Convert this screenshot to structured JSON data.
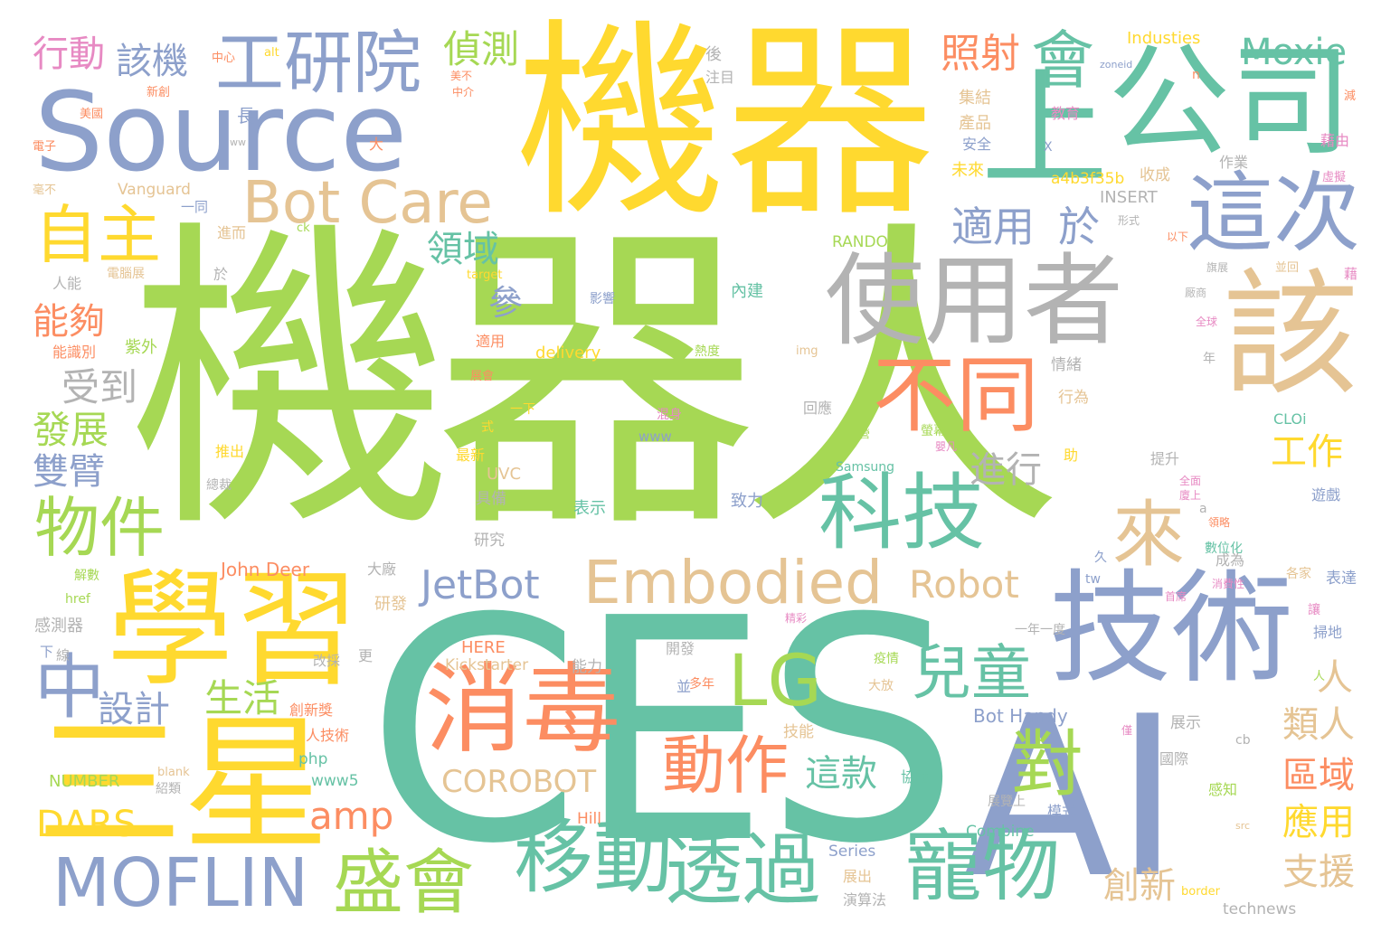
{
  "palette": {
    "green": "#a6d854",
    "teal": "#66c2a5",
    "blue": "#8da0cb",
    "yellow": "#ffd92f",
    "orange": "#fc8d62",
    "tan": "#e5c494",
    "gray": "#b3b3b3",
    "pink": "#e78ac3"
  },
  "words": [
    {
      "text": "機器人",
      "color": "green"
    },
    {
      "text": "CES",
      "color": "teal"
    },
    {
      "text": "機器",
      "color": "yellow"
    },
    {
      "text": "AI",
      "color": "blue"
    },
    {
      "text": "Source",
      "color": "blue"
    },
    {
      "text": "公司",
      "color": "teal"
    },
    {
      "text": "上",
      "color": "teal"
    },
    {
      "text": "學習",
      "color": "yellow"
    },
    {
      "text": "三星",
      "color": "yellow"
    },
    {
      "text": "技術",
      "color": "blue"
    },
    {
      "text": "使用者",
      "color": "gray"
    },
    {
      "text": "該",
      "color": "tan"
    },
    {
      "text": "消毒",
      "color": "orange"
    },
    {
      "text": "科技",
      "color": "teal"
    },
    {
      "text": "工研院",
      "color": "blue"
    },
    {
      "text": "這次",
      "color": "blue"
    },
    {
      "text": "不同",
      "color": "orange"
    },
    {
      "text": "Embodied",
      "color": "tan"
    },
    {
      "text": "移動",
      "color": "teal"
    },
    {
      "text": "透過",
      "color": "teal"
    },
    {
      "text": "寵物",
      "color": "teal"
    },
    {
      "text": "盛會",
      "color": "green"
    },
    {
      "text": "MOFLIN",
      "color": "blue"
    },
    {
      "text": "Bot Care",
      "color": "tan"
    },
    {
      "text": "物件",
      "color": "green"
    },
    {
      "text": "自主",
      "color": "yellow"
    },
    {
      "text": "來",
      "color": "tan"
    },
    {
      "text": "會",
      "color": "teal"
    },
    {
      "text": "動作",
      "color": "orange"
    },
    {
      "text": "LG",
      "color": "green"
    },
    {
      "text": "兒童",
      "color": "teal"
    },
    {
      "text": "對",
      "color": "green"
    },
    {
      "text": "中",
      "color": "blue"
    },
    {
      "text": "Moxie",
      "color": "teal"
    },
    {
      "text": "適用",
      "color": "blue"
    },
    {
      "text": "於",
      "color": "blue"
    },
    {
      "text": "JetBot",
      "color": "blue"
    },
    {
      "text": "Robot",
      "color": "tan"
    },
    {
      "text": "照射",
      "color": "orange"
    },
    {
      "text": "偵測",
      "color": "green"
    },
    {
      "text": "該機",
      "color": "blue"
    },
    {
      "text": "行動",
      "color": "pink"
    },
    {
      "text": "領域",
      "color": "teal"
    },
    {
      "text": "能夠",
      "color": "orange"
    },
    {
      "text": "受到",
      "color": "gray"
    },
    {
      "text": "發展",
      "color": "green"
    },
    {
      "text": "雙臂",
      "color": "blue"
    },
    {
      "text": "設計",
      "color": "blue"
    },
    {
      "text": "生活",
      "color": "green"
    },
    {
      "text": "DARS",
      "color": "yellow"
    },
    {
      "text": "amp",
      "color": "orange"
    },
    {
      "text": "這款",
      "color": "teal"
    },
    {
      "text": "進行",
      "color": "gray"
    },
    {
      "text": "COROBOT",
      "color": "tan"
    },
    {
      "text": "工作",
      "color": "yellow"
    },
    {
      "text": "人",
      "color": "tan"
    },
    {
      "text": "類人",
      "color": "tan"
    },
    {
      "text": "區域",
      "color": "orange"
    },
    {
      "text": "應用",
      "color": "yellow"
    },
    {
      "text": "支援",
      "color": "tan"
    },
    {
      "text": "創新",
      "color": "tan"
    },
    {
      "text": "參",
      "color": "blue"
    },
    {
      "text": "Industies",
      "color": "yellow"
    },
    {
      "text": "後",
      "color": "gray"
    },
    {
      "text": "注目",
      "color": "gray"
    },
    {
      "text": "長",
      "color": "blue"
    },
    {
      "text": "大",
      "color": "orange"
    },
    {
      "text": "集結",
      "color": "tan"
    },
    {
      "text": "產品",
      "color": "tan"
    },
    {
      "text": "安全",
      "color": "blue"
    },
    {
      "text": "未來",
      "color": "yellow"
    },
    {
      "text": "教育",
      "color": "pink"
    },
    {
      "text": "a4b3f35b",
      "color": "yellow"
    },
    {
      "text": "收成",
      "color": "tan"
    },
    {
      "text": "作業",
      "color": "gray"
    },
    {
      "text": "INSERT",
      "color": "gray"
    },
    {
      "text": "RANDOM",
      "color": "green"
    },
    {
      "text": "Vanguard",
      "color": "tan"
    },
    {
      "text": "delivery",
      "color": "yellow"
    },
    {
      "text": "內建",
      "color": "teal"
    },
    {
      "text": "影響",
      "color": "blue"
    },
    {
      "text": "熱度",
      "color": "green"
    },
    {
      "text": "img",
      "color": "tan"
    },
    {
      "text": "情緒",
      "color": "gray"
    },
    {
      "text": "行為",
      "color": "tan"
    },
    {
      "text": "回應",
      "color": "gray"
    },
    {
      "text": "混身",
      "color": "pink"
    },
    {
      "text": "www",
      "color": "blue"
    },
    {
      "text": "CLOi",
      "color": "teal"
    },
    {
      "text": "Samsung",
      "color": "teal"
    },
    {
      "text": "致力",
      "color": "blue"
    },
    {
      "text": "表示",
      "color": "teal"
    },
    {
      "text": "UVC",
      "color": "tan"
    },
    {
      "text": "具備",
      "color": "gray"
    },
    {
      "text": "研究",
      "color": "gray"
    },
    {
      "text": "John Deer",
      "color": "orange"
    },
    {
      "text": "大廠",
      "color": "gray"
    },
    {
      "text": "研發",
      "color": "tan"
    },
    {
      "text": "HERE",
      "color": "orange"
    },
    {
      "text": "Kickstarter",
      "color": "tan"
    },
    {
      "text": "能力",
      "color": "gray"
    },
    {
      "text": "開發",
      "color": "gray"
    },
    {
      "text": "並",
      "color": "blue"
    },
    {
      "text": "多年",
      "color": "orange"
    },
    {
      "text": "大放",
      "color": "tan"
    },
    {
      "text": "技能",
      "color": "tan"
    },
    {
      "text": "Bot Handy",
      "color": "blue"
    },
    {
      "text": "展示",
      "color": "gray"
    },
    {
      "text": "國際",
      "color": "gray"
    },
    {
      "text": "感知",
      "color": "green"
    },
    {
      "text": "協助",
      "color": "teal"
    },
    {
      "text": "展覽上",
      "color": "gray"
    },
    {
      "text": "模式",
      "color": "blue"
    },
    {
      "text": "Combine",
      "color": "teal"
    },
    {
      "text": "Hill",
      "color": "orange"
    },
    {
      "text": "Series",
      "color": "blue"
    },
    {
      "text": "展出",
      "color": "tan"
    },
    {
      "text": "演算法",
      "color": "gray"
    },
    {
      "text": "technews",
      "color": "gray"
    },
    {
      "text": "border",
      "color": "yellow"
    },
    {
      "text": "php",
      "color": "teal"
    },
    {
      "text": "www5",
      "color": "teal"
    },
    {
      "text": "NUMBER",
      "color": "green"
    },
    {
      "text": "紹類",
      "color": "gray"
    },
    {
      "text": "blank",
      "color": "tan"
    },
    {
      "text": "創新獎",
      "color": "orange"
    },
    {
      "text": "人技術",
      "color": "orange"
    },
    {
      "text": "感測器",
      "color": "gray"
    },
    {
      "text": "下",
      "color": "blue"
    },
    {
      "text": "線",
      "color": "gray"
    },
    {
      "text": "改採",
      "color": "gray"
    },
    {
      "text": "更",
      "color": "gray"
    },
    {
      "text": "href",
      "color": "green"
    },
    {
      "text": "解數",
      "color": "green"
    },
    {
      "text": "推出",
      "color": "yellow"
    },
    {
      "text": "最新",
      "color": "yellow"
    },
    {
      "text": "式",
      "color": "yellow"
    },
    {
      "text": "一下",
      "color": "yellow"
    },
    {
      "text": "總裁",
      "color": "gray"
    },
    {
      "text": "能識別",
      "color": "orange"
    },
    {
      "text": "紫外",
      "color": "green"
    },
    {
      "text": "人能",
      "color": "gray"
    },
    {
      "text": "電腦展",
      "color": "tan"
    },
    {
      "text": "進而",
      "color": "tan"
    },
    {
      "text": "於",
      "color": "gray"
    },
    {
      "text": "ck",
      "color": "green"
    },
    {
      "text": "target",
      "color": "yellow"
    },
    {
      "text": "適用",
      "color": "orange"
    },
    {
      "text": "展會",
      "color": "orange"
    },
    {
      "text": "一同",
      "color": "blue"
    },
    {
      "text": "中心",
      "color": "orange"
    },
    {
      "text": "alt",
      "color": "yellow"
    },
    {
      "text": "新創",
      "color": "orange"
    },
    {
      "text": "美國",
      "color": "orange"
    },
    {
      "text": "電子",
      "color": "orange"
    },
    {
      "text": "毫不",
      "color": "tan"
    },
    {
      "text": "ww",
      "color": "gray"
    },
    {
      "text": "美不",
      "color": "orange"
    },
    {
      "text": "中介",
      "color": "orange"
    },
    {
      "text": "zoneid",
      "color": "blue"
    },
    {
      "text": "n",
      "color": "orange"
    },
    {
      "text": "X",
      "color": "blue"
    },
    {
      "text": "形式",
      "color": "gray"
    },
    {
      "text": "以下",
      "color": "orange"
    },
    {
      "text": "旗展",
      "color": "gray"
    },
    {
      "text": "並回",
      "color": "tan"
    },
    {
      "text": "厰商",
      "color": "gray"
    },
    {
      "text": "全球",
      "color": "pink"
    },
    {
      "text": "年",
      "color": "gray"
    },
    {
      "text": "螢幕",
      "color": "green"
    },
    {
      "text": "嬰凡",
      "color": "pink"
    },
    {
      "text": "提升",
      "color": "gray"
    },
    {
      "text": "助",
      "color": "yellow"
    },
    {
      "text": "全面",
      "color": "pink"
    },
    {
      "text": "廈上",
      "color": "pink"
    },
    {
      "text": "a",
      "color": "gray"
    },
    {
      "text": "遊戲",
      "color": "blue"
    },
    {
      "text": "領略",
      "color": "orange"
    },
    {
      "text": "數位化",
      "color": "teal"
    },
    {
      "text": "久",
      "color": "blue"
    },
    {
      "text": "成為",
      "color": "gray"
    },
    {
      "text": "各家",
      "color": "tan"
    },
    {
      "text": "表達",
      "color": "blue"
    },
    {
      "text": "消費性",
      "color": "pink"
    },
    {
      "text": "首席",
      "color": "pink"
    },
    {
      "text": "tw",
      "color": "blue"
    },
    {
      "text": "讓",
      "color": "pink"
    },
    {
      "text": "掃地",
      "color": "blue"
    },
    {
      "text": "精彩",
      "color": "pink"
    },
    {
      "text": "一年一度",
      "color": "gray"
    },
    {
      "text": "疫情",
      "color": "green"
    },
    {
      "text": "人",
      "color": "green"
    },
    {
      "text": "cb",
      "color": "gray"
    },
    {
      "text": "src",
      "color": "tan"
    },
    {
      "text": "僅",
      "color": "pink"
    },
    {
      "text": "減",
      "color": "orange"
    },
    {
      "text": "藉由",
      "color": "pink"
    },
    {
      "text": "虛擬",
      "color": "pink"
    },
    {
      "text": "藉",
      "color": "pink"
    },
    {
      "text": "營",
      "color": "green"
    }
  ]
}
